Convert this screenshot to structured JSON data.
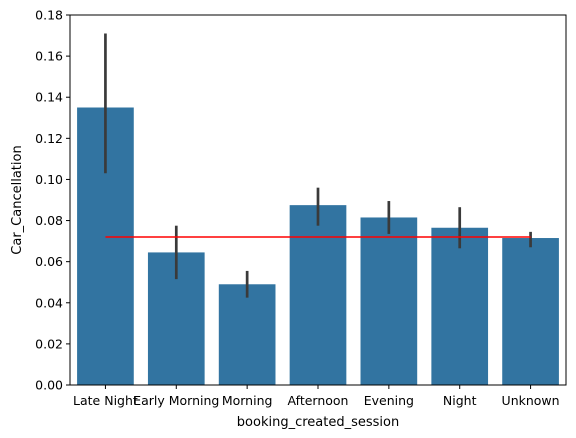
{
  "chart_data": {
    "type": "bar",
    "xlabel": "booking_created_session",
    "ylabel": "Car_Cancellation",
    "categories": [
      "Late Night",
      "Early Morning",
      "Morning",
      "Afternoon",
      "Evening",
      "Night",
      "Unknown"
    ],
    "values": [
      0.135,
      0.0645,
      0.049,
      0.0875,
      0.0815,
      0.0765,
      0.0715
    ],
    "error_low": [
      0.103,
      0.0515,
      0.0425,
      0.0775,
      0.0735,
      0.0665,
      0.067
    ],
    "error_high": [
      0.171,
      0.0775,
      0.0555,
      0.096,
      0.0895,
      0.0865,
      0.0745
    ],
    "reference_line": {
      "value": 0.072,
      "color": "#ff0000"
    },
    "ylim": [
      0,
      0.18
    ],
    "yticks": [
      "0.00",
      "0.02",
      "0.04",
      "0.06",
      "0.08",
      "0.10",
      "0.12",
      "0.14",
      "0.16",
      "0.18"
    ],
    "bar_color": "#3274a1",
    "error_color": "#3a3a3a",
    "grid": false,
    "legend": "none"
  }
}
